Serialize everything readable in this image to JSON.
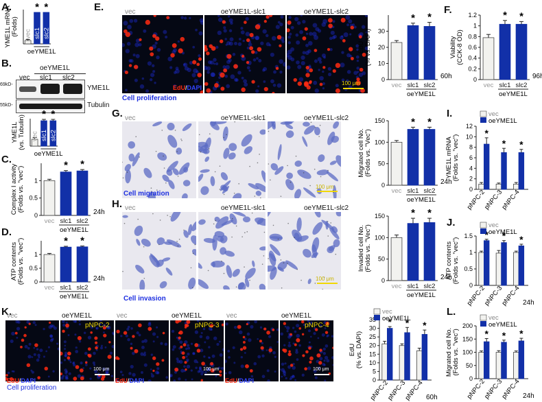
{
  "panels": {
    "A": {
      "label": "A.",
      "ylabel": "YME1L mRNA (Folds)",
      "vec": "vec",
      "slc1": "slc1",
      "slc2": "slc2",
      "group": "oeYME1L",
      "star": "*"
    },
    "B": {
      "label": "B.",
      "group": "oeYME1L",
      "vec": "vec",
      "slc1": "slc1",
      "slc2": "slc2",
      "mw1": "69kD-",
      "mw2": "55kD-",
      "protein1": "YME1L",
      "protein2": "Tubulin",
      "ylabel": "YME1L (vs. Tubulin)",
      "group2": "oeYME1L",
      "star": "*"
    },
    "C": {
      "label": "C.",
      "ylabel": "Complex I activity (Folds vs. \"vec\")",
      "time": "24h",
      "group": "oeYME1L",
      "vec": "vec",
      "slc1": "slc1",
      "slc2": "slc2",
      "star": "*"
    },
    "D": {
      "label": "D.",
      "ylabel": "ATP contents (Folds vs. \"vec\")",
      "time": "24h",
      "group": "oeYME1L",
      "vec": "vec",
      "slc1": "slc1",
      "slc2": "slc2",
      "star": "*"
    },
    "E": {
      "label": "E.",
      "vec": "vec",
      "h1": "oeYME1L-slc1",
      "h2": "oeYME1L-slc2",
      "edu": "EdU",
      "slash": "/",
      "dapi": "DAPI",
      "scale": "100 μm",
      "caption": "Cell proliferation",
      "ylabel": "EdU (% vs. DAPI)",
      "time": "60h",
      "group": "oeYME1L",
      "slc1": "slc1",
      "slc2": "slc2",
      "star": "*"
    },
    "F": {
      "label": "F.",
      "ylabel": "Viability (CCK-8 OD)",
      "time": "96h",
      "group": "oeYME1L",
      "vec": "vec",
      "slc1": "slc1",
      "slc2": "slc2",
      "star": "*"
    },
    "G": {
      "label": "G.",
      "vec": "vec",
      "h1": "oeYME1L-slc1",
      "h2": "oeYME1L-slc2",
      "scale": "100 μm",
      "caption": "Cell migration",
      "ylabel": "Migrated cell No. (Folds vs. \"Vec\")",
      "time": "24h",
      "group": "oeYME1L",
      "slc1": "slc1",
      "slc2": "slc2",
      "star": "*"
    },
    "H": {
      "label": "H.",
      "vec": "vec",
      "h1": "oeYME1L-slc1",
      "h2": "oeYME1L-slc2",
      "scale": "100 μm",
      "caption": "Cell invasion",
      "ylabel": "Invaded cell No. (Folds vs. \"Vec\")",
      "time": "24h",
      "group": "oeYME1L",
      "slc1": "slc1",
      "slc2": "slc2",
      "star": "*"
    },
    "I": {
      "label": "I.",
      "ylabel": "YME1L mRNA (Folds vs. \"vec\")",
      "leg_vec": "vec",
      "leg_oe": "oeYME1L",
      "cats": [
        "pNPC-2",
        "pNPC-3",
        "pNPC-4"
      ],
      "star": "*"
    },
    "J": {
      "label": "J.",
      "ylabel": "ATP contents (Folds vs. \"vec\")",
      "leg_vec": "vec",
      "leg_oe": "oeYME1L",
      "cats": [
        "pNPC-2",
        "pNPC-3",
        "pNPC-4"
      ],
      "time": "24h",
      "star": "*"
    },
    "K": {
      "label": "K.",
      "img": [
        {
          "head": "vec",
          "tag": ""
        },
        {
          "head": "oeYME1L",
          "tag": "pNPC-2"
        },
        {
          "head": "vec",
          "tag": ""
        },
        {
          "head": "oeYME1L",
          "tag": "pNPC-3"
        },
        {
          "head": "vec",
          "tag": ""
        },
        {
          "head": "oeYME1L",
          "tag": "pNPC-4"
        }
      ],
      "edu": "EdU",
      "slash": "/",
      "dapi": "DAPI",
      "scale": "100 μm",
      "caption": "Cell proliferation",
      "ylabel": "EdU (% vs. DAPI)",
      "leg_vec": "vec",
      "leg_oe": "oeYME1L",
      "cats": [
        "pNPC-2",
        "pNPC-3",
        "pNPC-4"
      ],
      "time": "60h",
      "star": "*"
    },
    "L": {
      "label": "L.",
      "ylabel": "Migrated cell No. (Folds vs. \"vec\")",
      "leg_vec": "vec",
      "leg_oe": "oeYME1L",
      "cats": [
        "pNPC-2",
        "pNPC-3",
        "pNPC-4"
      ],
      "time": "24h",
      "star": "*"
    }
  },
  "colors": {
    "vec": "#f2f2ef",
    "oe": "#1230a8",
    "edu": "#ff2a10",
    "dapi": "#2233ff",
    "caption": "#1d2fe0",
    "scale": "#f1d800"
  },
  "chart_data": [
    {
      "id": "A",
      "type": "bar",
      "categories": [
        "vec",
        "slc1",
        "slc2"
      ],
      "values": [
        1,
        9.2,
        9.2
      ],
      "errors": [
        0.3,
        0,
        0
      ],
      "ylim": [
        0,
        10
      ],
      "yticks": []
    },
    {
      "id": "B",
      "type": "bar",
      "categories": [
        "vec",
        "slc1",
        "slc2"
      ],
      "values": [
        1,
        3.7,
        3.7
      ],
      "errors": [
        0.25,
        0.2,
        0.2
      ],
      "ylim": [
        0,
        4
      ],
      "yticks": []
    },
    {
      "id": "C",
      "type": "bar",
      "categories": [
        "vec",
        "slc1",
        "slc2"
      ],
      "values": [
        1,
        1.25,
        1.28
      ],
      "errors": [
        0.04,
        0.04,
        0.04
      ],
      "ylim": [
        0,
        1.5
      ],
      "yticks": [
        0,
        0.5,
        1
      ]
    },
    {
      "id": "D",
      "type": "bar",
      "categories": [
        "vec",
        "slc1",
        "slc2"
      ],
      "values": [
        1,
        1.27,
        1.28
      ],
      "errors": [
        0.04,
        0.03,
        0.03
      ],
      "ylim": [
        0,
        1.5
      ],
      "yticks": [
        0,
        0.5,
        1
      ]
    },
    {
      "id": "E",
      "type": "bar",
      "categories": [
        "vec",
        "slc1",
        "slc2"
      ],
      "values": [
        23,
        33.5,
        33
      ],
      "errors": [
        1.2,
        1.5,
        2.5
      ],
      "ylim": [
        0,
        40
      ],
      "yticks": [
        0,
        10,
        20,
        30
      ]
    },
    {
      "id": "F",
      "type": "bar",
      "categories": [
        "vec",
        "slc1",
        "slc2"
      ],
      "values": [
        0.78,
        1.03,
        1.03
      ],
      "errors": [
        0.06,
        0.07,
        0.05
      ],
      "ylim": [
        0,
        1.2
      ],
      "yticks": [
        0,
        0.2,
        0.4,
        0.6,
        0.8,
        1.0,
        1.2
      ]
    },
    {
      "id": "G",
      "type": "bar",
      "categories": [
        "vec",
        "slc1",
        "slc2"
      ],
      "values": [
        100,
        130,
        130
      ],
      "errors": [
        4,
        5,
        5
      ],
      "ylim": [
        0,
        150
      ],
      "yticks": [
        0,
        50,
        100,
        150
      ]
    },
    {
      "id": "H",
      "type": "bar",
      "categories": [
        "vec",
        "slc1",
        "slc2"
      ],
      "values": [
        100,
        133,
        135
      ],
      "errors": [
        6,
        12,
        10
      ],
      "ylim": [
        0,
        150
      ],
      "yticks": [
        0,
        50,
        100,
        150
      ]
    },
    {
      "id": "I",
      "type": "bar",
      "categories": [
        "pNPC-2",
        "pNPC-3",
        "pNPC-4"
      ],
      "series": [
        {
          "name": "vec",
          "values": [
            1,
            1,
            1
          ],
          "errors": [
            0.3,
            0.2,
            0.3
          ]
        },
        {
          "name": "oeYME1L",
          "values": [
            8.6,
            7,
            7
          ],
          "errors": [
            1.2,
            0.8,
            0.6
          ]
        }
      ],
      "ylim": [
        0,
        12
      ],
      "yticks": [
        0,
        2,
        4,
        6,
        8,
        10,
        12
      ]
    },
    {
      "id": "J",
      "type": "bar",
      "categories": [
        "pNPC-2",
        "pNPC-3",
        "pNPC-4"
      ],
      "series": [
        {
          "name": "vec",
          "values": [
            1,
            0.98,
            1
          ],
          "errors": [
            0.04,
            0.08,
            0.04
          ]
        },
        {
          "name": "oeYME1L",
          "values": [
            1.36,
            1.3,
            1.2
          ],
          "errors": [
            0.04,
            0.06,
            0.05
          ]
        }
      ],
      "ylim": [
        0,
        1.5
      ],
      "yticks": [
        0,
        0.5,
        1,
        1.5
      ]
    },
    {
      "id": "K",
      "type": "bar",
      "categories": [
        "pNPC-2",
        "pNPC-3",
        "pNPC-4"
      ],
      "series": [
        {
          "name": "vec",
          "values": [
            21,
            20,
            17
          ],
          "errors": [
            1.5,
            1,
            1.5
          ]
        },
        {
          "name": "oeYME1L",
          "values": [
            30,
            27.5,
            26.5
          ],
          "errors": [
            1,
            3,
            2.5
          ]
        }
      ],
      "ylim": [
        0,
        35
      ],
      "yticks": [
        0,
        5,
        10,
        15,
        20,
        25,
        30,
        35
      ]
    },
    {
      "id": "L",
      "type": "bar",
      "categories": [
        "pNPC-2",
        "pNPC-3",
        "pNPC-4"
      ],
      "series": [
        {
          "name": "vec",
          "values": [
            100,
            100,
            100
          ],
          "errors": [
            5,
            6,
            5
          ]
        },
        {
          "name": "oeYME1L",
          "values": [
            140,
            138,
            143
          ],
          "errors": [
            12,
            8,
            10
          ]
        }
      ],
      "ylim": [
        0,
        200
      ],
      "yticks": [
        0,
        50,
        100,
        150,
        200
      ]
    }
  ]
}
